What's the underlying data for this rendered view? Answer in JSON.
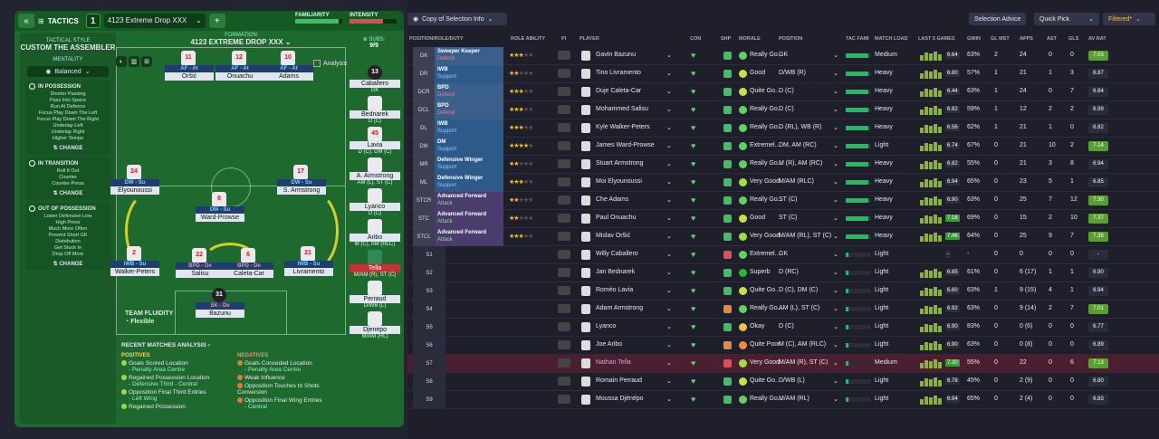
{
  "tactics_panel": {
    "label": "TACTICS",
    "tactic_number": "1",
    "tactic_name": "4123 Extreme Drop XXX",
    "familiarity_label": "FAMILIARITY",
    "intensity_label": "INTENSITY",
    "familiarity_fill": 0.92,
    "intensity_fill": 0.72,
    "tactical_style_label": "TACTICAL STYLE",
    "tactical_style": "CUSTOM THE ASSEMBLER",
    "mentality_label": "MENTALITY",
    "mentality": "Balanced",
    "in_possession": {
      "title": "IN POSSESSION",
      "items": [
        "Shorter Passing",
        "Pass Into Space",
        "Run At Defence",
        "Focus Play Down The Left",
        "Focus Play Down The Right",
        "Underlap Left",
        "Underlap Right",
        "Higher Tempo"
      ],
      "change": "CHANGE"
    },
    "in_transition": {
      "title": "IN TRANSITION",
      "items": [
        "Roll It Out",
        "Counter",
        "Counter-Press"
      ],
      "change": "CHANGE"
    },
    "out_of_possession": {
      "title": "OUT OF POSSESSION",
      "items": [
        "Lower Defensive Line",
        "High Press",
        "Much More Often",
        "Prevent Short GK",
        "Distribution",
        "Get Stuck In",
        "Drop Off More"
      ],
      "change": "CHANGE"
    },
    "formation_label": "FORMATION",
    "formation_name": "4123 EXTREME DROP XXX",
    "subs_label": "SUBS:",
    "subs_count": "9/9",
    "analysis_label": "Analysis",
    "team_fluidity_label": "TEAM FLUIDITY",
    "team_fluidity": "Flexible",
    "recent_title": "RECENT MATCHES ANALYSIS",
    "positives_title": "POSITIVES",
    "positives": [
      {
        "t": "Goals Scored Location",
        "s": "- Penalty Area Centre"
      },
      {
        "t": "Regained Possession Location",
        "s": "- Defensive Third - Central"
      },
      {
        "t": "Opposition Final Third Entries",
        "s": "- Left Wing"
      },
      {
        "t": "Regained Possession",
        "s": ""
      }
    ],
    "negatives_title": "NEGATIVES",
    "negatives": [
      {
        "t": "Goals Conceded Location",
        "s": "- Penalty Area Centre"
      },
      {
        "t": "Weak Influence",
        "s": ""
      },
      {
        "t": "Opposition Touches to Shots Conversion",
        "s": ""
      },
      {
        "t": "Opposition Final Wing Entries",
        "s": "- Central"
      }
    ],
    "pitch_players": [
      {
        "num": "11",
        "role": "AF",
        "duty": "At",
        "name": "Oršić"
      },
      {
        "num": "12",
        "role": "AF",
        "duty": "At",
        "name": "Onuachu"
      },
      {
        "num": "10",
        "role": "AF",
        "duty": "At",
        "name": "Adams"
      },
      {
        "num": "24",
        "role": "DW",
        "duty": "Su",
        "name": "Elyounoussi"
      },
      {
        "num": "8",
        "role": "DM",
        "duty": "Su",
        "name": "Ward-Prowse"
      },
      {
        "num": "17",
        "role": "DW",
        "duty": "Su",
        "name": "S. Armstrong"
      },
      {
        "num": "2",
        "role": "IWB",
        "duty": "Su",
        "name": "Walker-Peters"
      },
      {
        "num": "22",
        "role": "BPD",
        "duty": "De",
        "name": "Salisu"
      },
      {
        "num": "6",
        "role": "BPD",
        "duty": "De",
        "name": "Caleta-Car"
      },
      {
        "num": "21",
        "role": "IWB",
        "duty": "Su",
        "name": "Livramento"
      },
      {
        "num": "31",
        "role": "SK",
        "duty": "De",
        "name": "Bazunu"
      }
    ],
    "subs": [
      {
        "num": "13",
        "name": "Caballero",
        "pos": "GK"
      },
      {
        "num": "",
        "name": "Bednarek",
        "pos": "D (C)"
      },
      {
        "num": "45",
        "name": "Lavia",
        "pos": "D (C), DM (C)"
      },
      {
        "num": "",
        "name": "A. Armstrong",
        "pos": "AM (L), ST (C)"
      },
      {
        "num": "",
        "name": "Lyanco",
        "pos": "D (C)"
      },
      {
        "num": "",
        "name": "Aribo",
        "pos": "M (C), AM (RLC)"
      },
      {
        "num": "",
        "name": "Tella",
        "pos": "M/AM (R), ST (C)"
      },
      {
        "num": "",
        "name": "Perraud",
        "pos": "D/WB (L)"
      },
      {
        "num": "",
        "name": "Djenepo",
        "pos": "M/AM (RL)"
      }
    ]
  },
  "selection": {
    "view_label": "Copy of Selection Info",
    "selection_advice": "Selection Advice",
    "quick_pick": "Quick Pick",
    "filtered": "Filtered*",
    "headers": [
      "POSITION/ROLE/DUTY",
      "ROLE ABILITY",
      "PI",
      "PLAYER",
      "CON",
      "SHP",
      "MORALE",
      "POSITION",
      "TAC FAMI",
      "MATCH LOAD",
      "LAST 5 GAMES",
      "GWIN",
      "GL MST",
      "APPS",
      "AST",
      "GLS",
      "AV RAT"
    ],
    "rows": [
      {
        "pos": "GK",
        "role": "Sweeper Keeper",
        "duty": "Defend",
        "stars": 3,
        "player": "Gavin Bazunu",
        "morale": "Really Go...",
        "position": "GK",
        "load": "Medium",
        "l5": "6.64",
        "gwin": "63%",
        "glmst": "2",
        "apps": "24",
        "ast": "0",
        "gls": "0",
        "av": "7.03",
        "good": true
      },
      {
        "pos": "DR",
        "role": "IWB",
        "duty": "Support",
        "stars": 2,
        "player": "Tino Livramento",
        "morale": "Good",
        "position": "D/WB (R)",
        "load": "Heavy",
        "l5": "6.80",
        "gwin": "57%",
        "glmst": "1",
        "apps": "21",
        "ast": "1",
        "gls": "3",
        "av": "6.87",
        "good": false
      },
      {
        "pos": "DCR",
        "role": "BPD",
        "duty": "Defend",
        "stars": 3,
        "player": "Duje Caleta-Car",
        "morale": "Quite Go...",
        "position": "D (C)",
        "load": "Heavy",
        "l5": "6.44",
        "gwin": "63%",
        "glmst": "1",
        "apps": "24",
        "ast": "0",
        "gls": "7",
        "av": "6.84",
        "good": false
      },
      {
        "pos": "DCL",
        "role": "BPD",
        "duty": "Defend",
        "stars": 3,
        "player": "Mohammed Salisu",
        "morale": "Really Go...",
        "position": "D (C)",
        "load": "Heavy",
        "l5": "6.82",
        "gwin": "59%",
        "glmst": "1",
        "apps": "12",
        "ast": "2",
        "gls": "2",
        "av": "6.99",
        "good": false
      },
      {
        "pos": "DL",
        "role": "IWB",
        "duty": "Support",
        "stars": 3,
        "player": "Kyle Walker-Peters",
        "morale": "Really Go...",
        "position": "D (RL), WB (R)",
        "load": "Heavy",
        "l5": "6.56",
        "gwin": "62%",
        "glmst": "1",
        "apps": "21",
        "ast": "1",
        "gls": "0",
        "av": "6.82",
        "good": false
      },
      {
        "pos": "DM",
        "role": "DM",
        "duty": "Support",
        "stars": 4,
        "player": "James Ward-Prowse",
        "morale": "Extremel...",
        "position": "DM, AM (RC)",
        "load": "Light",
        "l5": "6.74",
        "gwin": "67%",
        "glmst": "0",
        "apps": "21",
        "ast": "10",
        "gls": "2",
        "av": "7.14",
        "good": true
      },
      {
        "pos": "MR",
        "role": "Defensive Winger",
        "duty": "Support",
        "stars": 2,
        "player": "Stuart Armstrong",
        "morale": "Really Go...",
        "position": "M (R), AM (RC)",
        "load": "Heavy",
        "l5": "6.82",
        "gwin": "55%",
        "glmst": "0",
        "apps": "21",
        "ast": "3",
        "gls": "8",
        "av": "6.94",
        "good": false
      },
      {
        "pos": "ML",
        "role": "Defensive Winger",
        "duty": "Support",
        "stars": 3,
        "player": "Moi Elyounoussi",
        "morale": "Very Good",
        "position": "M/AM (RLC)",
        "load": "Heavy",
        "l5": "6.94",
        "gwin": "65%",
        "glmst": "0",
        "apps": "23",
        "ast": "5",
        "gls": "1",
        "av": "6.85",
        "good": false
      },
      {
        "pos": "STCR",
        "role": "Advanced Forward",
        "duty": "Attack",
        "stars": 2,
        "player": "Che Adams",
        "morale": "Really Go...",
        "position": "ST (C)",
        "load": "Heavy",
        "l5": "6.90",
        "gwin": "63%",
        "glmst": "0",
        "apps": "25",
        "ast": "7",
        "gls": "12",
        "av": "7.30",
        "good": true
      },
      {
        "pos": "STC",
        "role": "Advanced Forward",
        "duty": "Attack",
        "stars": 2,
        "player": "Paul Onuachu",
        "morale": "Good",
        "position": "ST (C)",
        "load": "Heavy",
        "l5": "7.16",
        "gwin": "69%",
        "glmst": "0",
        "apps": "15",
        "ast": "2",
        "gls": "10",
        "av": "7.37",
        "good": true
      },
      {
        "pos": "STCL",
        "role": "Advanced Forward",
        "duty": "Attack",
        "stars": 3,
        "player": "Mislav Oršić",
        "morale": "Very Good",
        "position": "M/AM (RL), ST (C)",
        "load": "Heavy",
        "l5": "7.46",
        "gwin": "64%",
        "glmst": "0",
        "apps": "25",
        "ast": "9",
        "gls": "7",
        "av": "7.36",
        "good": true
      },
      {
        "pos": "S1",
        "role": "",
        "duty": "",
        "stars": 0,
        "player": "Willy Caballero",
        "morale": "Extremel...",
        "position": "GK",
        "load": "Light",
        "l5": "-",
        "gwin": "-",
        "glmst": "0",
        "apps": "0",
        "ast": "0",
        "gls": "0",
        "av": "-",
        "good": false
      },
      {
        "pos": "S2",
        "role": "",
        "duty": "",
        "stars": 0,
        "player": "Jan Bednarek",
        "morale": "Superb",
        "position": "D (RC)",
        "load": "Light",
        "l5": "6.85",
        "gwin": "61%",
        "glmst": "0",
        "apps": "6 (17)",
        "ast": "1",
        "gls": "1",
        "av": "6.90",
        "good": false
      },
      {
        "pos": "S3",
        "role": "",
        "duty": "",
        "stars": 0,
        "player": "Roméo Lavia",
        "morale": "Quite Go...",
        "position": "D (C), DM (C)",
        "load": "Light",
        "l5": "6.60",
        "gwin": "63%",
        "glmst": "1",
        "apps": "9 (15)",
        "ast": "4",
        "gls": "1",
        "av": "6.94",
        "good": false
      },
      {
        "pos": "S4",
        "role": "",
        "duty": "",
        "stars": 0,
        "player": "Adam Armstrong",
        "morale": "Really Go...",
        "position": "AM (L), ST (C)",
        "load": "Light",
        "l5": "6.92",
        "gwin": "63%",
        "glmst": "0",
        "apps": "9 (14)",
        "ast": "2",
        "gls": "7",
        "av": "7.01",
        "good": true
      },
      {
        "pos": "S5",
        "role": "",
        "duty": "",
        "stars": 0,
        "player": "Lyanco",
        "morale": "Okay",
        "position": "D (C)",
        "load": "Light",
        "l5": "6.90",
        "gwin": "83%",
        "glmst": "0",
        "apps": "0 (6)",
        "ast": "0",
        "gls": "0",
        "av": "6.77",
        "good": false
      },
      {
        "pos": "S6",
        "role": "",
        "duty": "",
        "stars": 0,
        "player": "Joe Aribo",
        "morale": "Quite Poor",
        "position": "M (C), AM (RLC)",
        "load": "Light",
        "l5": "6.90",
        "gwin": "63%",
        "glmst": "0",
        "apps": "0 (8)",
        "ast": "0",
        "gls": "0",
        "av": "6.89",
        "good": false
      },
      {
        "pos": "S7",
        "role": "",
        "duty": "",
        "stars": 0,
        "player": "Nathan Tella",
        "morale": "Very Good",
        "position": "M/AM (R), ST (C)",
        "load": "Medium",
        "l5": "7.30",
        "gwin": "55%",
        "glmst": "0",
        "apps": "22",
        "ast": "0",
        "gls": "6",
        "av": "7.13",
        "good": true,
        "hl": true
      },
      {
        "pos": "S8",
        "role": "",
        "duty": "",
        "stars": 0,
        "player": "Romain Perraud",
        "morale": "Quite Go...",
        "position": "D/WB (L)",
        "load": "Light",
        "l5": "6.78",
        "gwin": "45%",
        "glmst": "0",
        "apps": "2 (9)",
        "ast": "0",
        "gls": "0",
        "av": "6.80",
        "good": false
      },
      {
        "pos": "S9",
        "role": "",
        "duty": "",
        "stars": 0,
        "player": "Moussa Djénépo",
        "morale": "Really Go...",
        "position": "M/AM (RL)",
        "load": "Light",
        "l5": "6.94",
        "gwin": "65%",
        "glmst": "0",
        "apps": "2 (4)",
        "ast": "0",
        "gls": "0",
        "av": "6.83",
        "good": false
      }
    ]
  },
  "colors": {
    "pitch": "#1e6a2e",
    "accent": "#3fbf5f",
    "attack_role": "#4a3d6e",
    "support_role": "#2e5a8a",
    "defend_role": "#3a5f8a"
  }
}
